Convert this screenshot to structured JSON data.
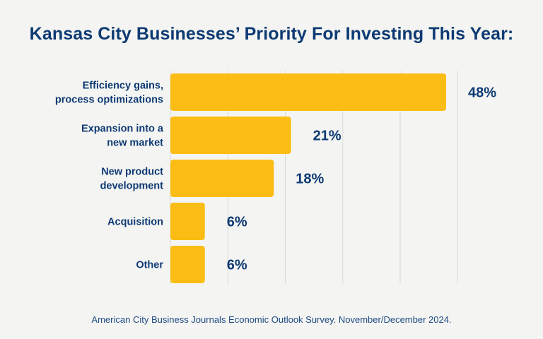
{
  "title": "Kansas City Businesses’ Priority For Investing This Year:",
  "source": "American City Business Journals Economic Outlook Survey. November/December 2024.",
  "colors": {
    "bar": "#fbbd14",
    "text": "#0d3a73",
    "grid": "#d9d9d9",
    "background": "#f4f4f2"
  },
  "chart_data": {
    "type": "bar",
    "orientation": "horizontal",
    "title": "Kansas City Businesses’ Priority For Investing This Year:",
    "categories": [
      [
        "Efficiency gains,",
        "process optimizations"
      ],
      [
        "Expansion into a",
        "new market"
      ],
      [
        "New product",
        "development"
      ],
      [
        "Acquisition"
      ],
      [
        "Other"
      ]
    ],
    "values": [
      48,
      21,
      18,
      6,
      6
    ],
    "value_labels": [
      "48%",
      "21%",
      "18%",
      "6%",
      "6%"
    ],
    "xlim": [
      0,
      50
    ],
    "grid": true,
    "legend": "none"
  }
}
